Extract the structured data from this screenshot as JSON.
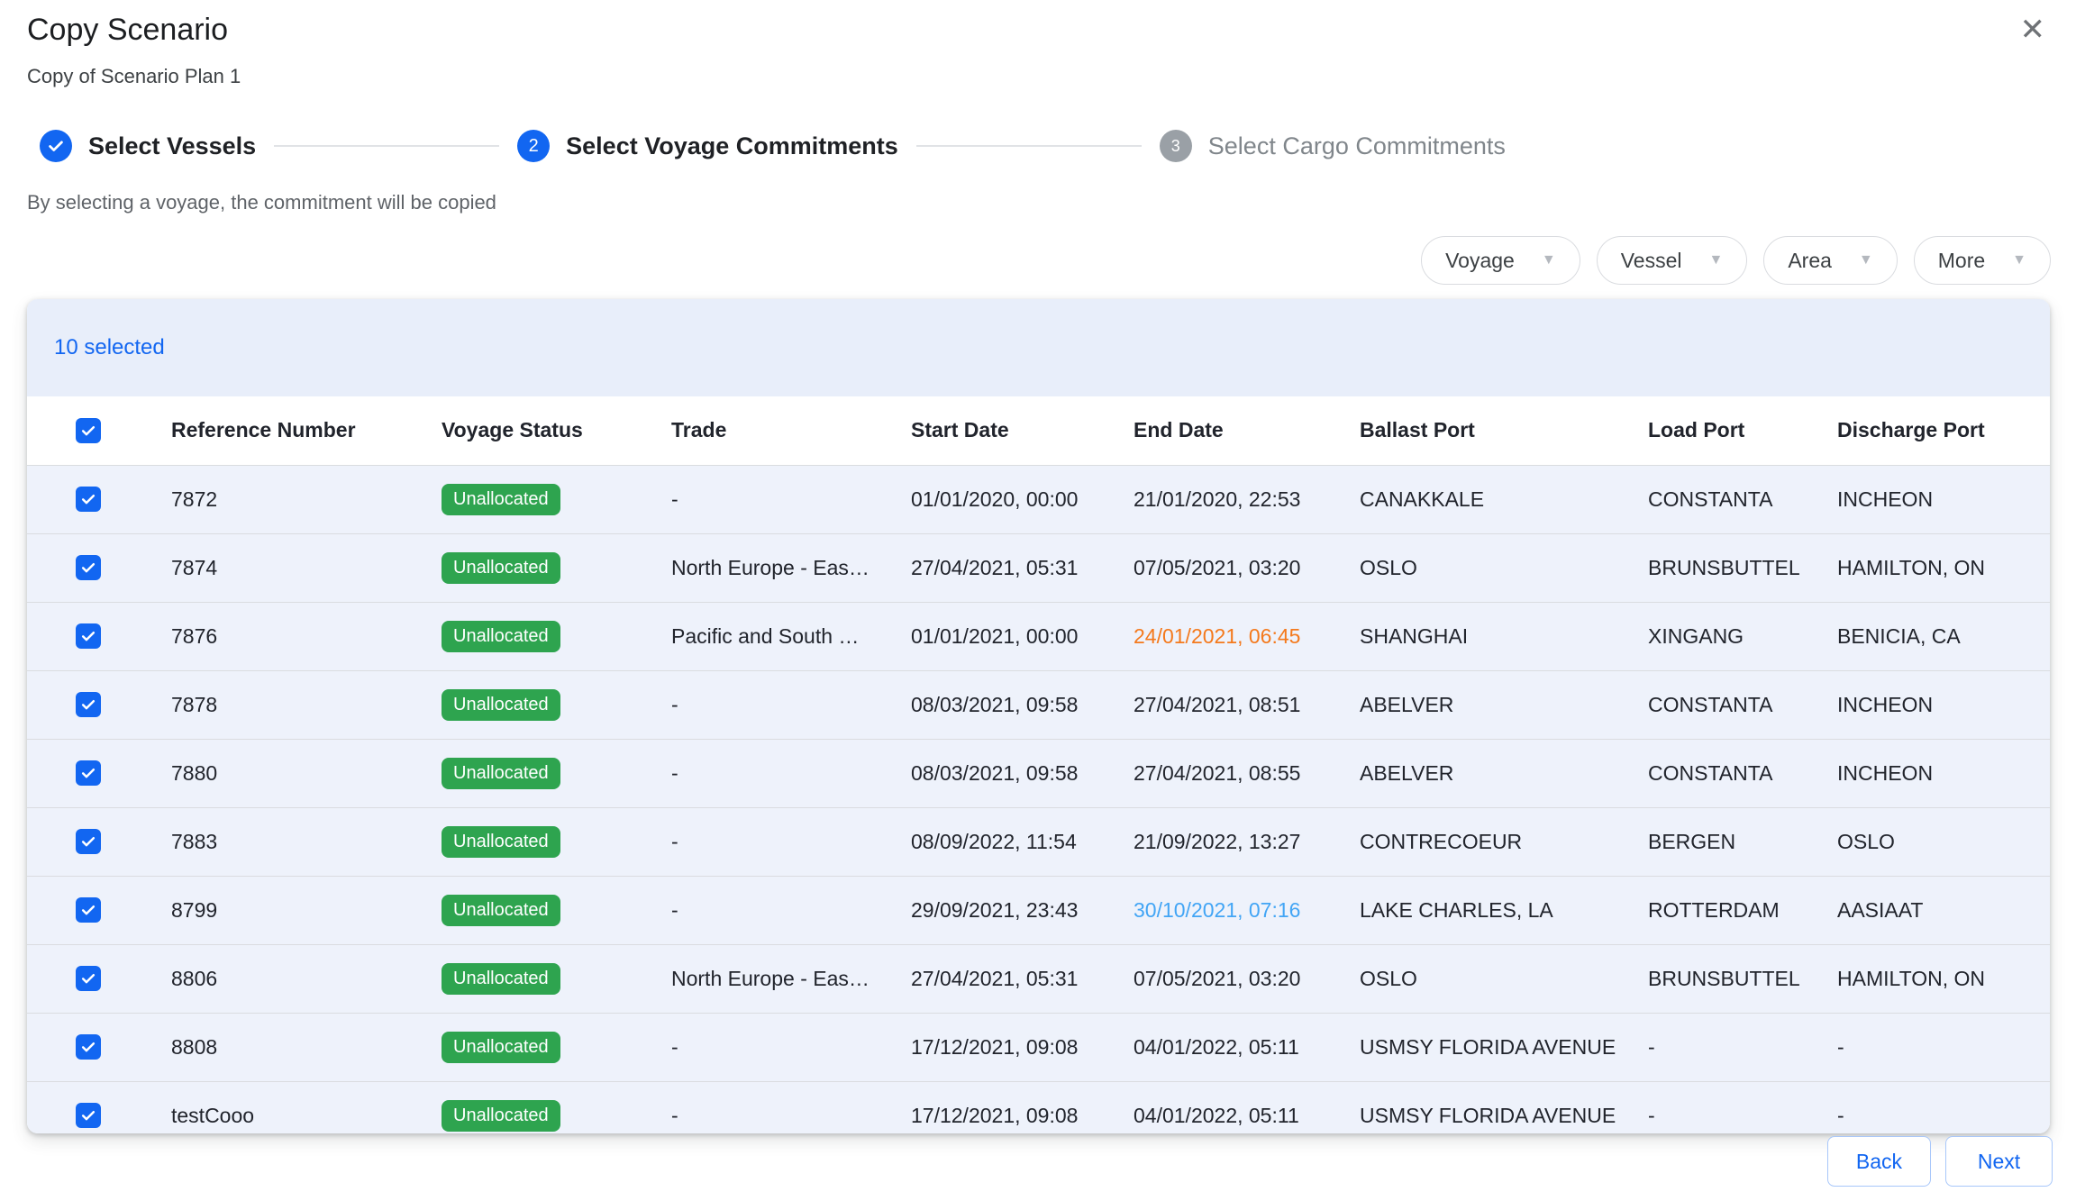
{
  "dialog": {
    "title": "Copy Scenario",
    "subtitle": "Copy of Scenario Plan 1",
    "helper": "By selecting a voyage, the commitment will be copied",
    "close_glyph": "✕"
  },
  "stepper": {
    "steps": [
      {
        "number": "1",
        "label": "Select Vessels",
        "state": "completed"
      },
      {
        "number": "2",
        "label": "Select Voyage Commitments",
        "state": "active"
      },
      {
        "number": "3",
        "label": "Select Cargo Commitments",
        "state": "pending"
      }
    ]
  },
  "filters": [
    {
      "label": "Voyage"
    },
    {
      "label": "Vessel"
    },
    {
      "label": "Area"
    },
    {
      "label": "More"
    }
  ],
  "table": {
    "selected_text": "10 selected",
    "columns": [
      "Reference Number",
      "Voyage Status",
      "Trade",
      "Start Date",
      "End Date",
      "Ballast Port",
      "Load Port",
      "Discharge Port"
    ],
    "rows": [
      {
        "checked": true,
        "reference": "7872",
        "status": "Unallocated",
        "trade": "-",
        "start": "01/01/2020, 00:00",
        "end": "21/01/2020, 22:53",
        "end_color": "default",
        "ballast": "CANAKKALE",
        "load": "CONSTANTA",
        "discharge": "INCHEON"
      },
      {
        "checked": true,
        "reference": "7874",
        "status": "Unallocated",
        "trade": "North Europe - Eas…",
        "start": "27/04/2021, 05:31",
        "end": "07/05/2021, 03:20",
        "end_color": "default",
        "ballast": "OSLO",
        "load": "BRUNSBUTTEL",
        "discharge": "HAMILTON, ON"
      },
      {
        "checked": true,
        "reference": "7876",
        "status": "Unallocated",
        "trade": "Pacific and South …",
        "start": "01/01/2021, 00:00",
        "end": "24/01/2021, 06:45",
        "end_color": "warning",
        "ballast": "SHANGHAI",
        "load": "XINGANG",
        "discharge": "BENICIA, CA"
      },
      {
        "checked": true,
        "reference": "7878",
        "status": "Unallocated",
        "trade": "-",
        "start": "08/03/2021, 09:58",
        "end": "27/04/2021, 08:51",
        "end_color": "default",
        "ballast": "ABELVER",
        "load": "CONSTANTA",
        "discharge": "INCHEON"
      },
      {
        "checked": true,
        "reference": "7880",
        "status": "Unallocated",
        "trade": "-",
        "start": "08/03/2021, 09:58",
        "end": "27/04/2021, 08:55",
        "end_color": "default",
        "ballast": "ABELVER",
        "load": "CONSTANTA",
        "discharge": "INCHEON"
      },
      {
        "checked": true,
        "reference": "7883",
        "status": "Unallocated",
        "trade": "-",
        "start": "08/09/2022, 11:54",
        "end": "21/09/2022, 13:27",
        "end_color": "default",
        "ballast": "CONTRECOEUR",
        "load": "BERGEN",
        "discharge": "OSLO"
      },
      {
        "checked": true,
        "reference": "8799",
        "status": "Unallocated",
        "trade": "-",
        "start": "29/09/2021, 23:43",
        "end": "30/10/2021, 07:16",
        "end_color": "info",
        "ballast": "LAKE CHARLES, LA",
        "load": "ROTTERDAM",
        "discharge": "AASIAAT"
      },
      {
        "checked": true,
        "reference": "8806",
        "status": "Unallocated",
        "trade": "North Europe - Eas…",
        "start": "27/04/2021, 05:31",
        "end": "07/05/2021, 03:20",
        "end_color": "default",
        "ballast": "OSLO",
        "load": "BRUNSBUTTEL",
        "discharge": "HAMILTON, ON"
      },
      {
        "checked": true,
        "reference": "8808",
        "status": "Unallocated",
        "trade": "-",
        "start": "17/12/2021, 09:08",
        "end": "04/01/2022, 05:11",
        "end_color": "default",
        "ballast": "USMSY FLORIDA AVENUE",
        "load": "-",
        "discharge": "-"
      },
      {
        "checked": true,
        "reference": "testCooo",
        "status": "Unallocated",
        "trade": "-",
        "start": "17/12/2021, 09:08",
        "end": "04/01/2022, 05:11",
        "end_color": "default",
        "ballast": "USMSY FLORIDA AVENUE",
        "load": "-",
        "discharge": "-"
      }
    ]
  },
  "footer": {
    "back_label": "Back",
    "next_label": "Next"
  },
  "colors": {
    "primary": "#1266F1",
    "badge_green": "#2EA44F",
    "end_date_warning": "#F4791C",
    "end_date_info": "#42A5F5",
    "banner_bg": "#E8EEFA",
    "row_bg": "#EEF2FB"
  }
}
